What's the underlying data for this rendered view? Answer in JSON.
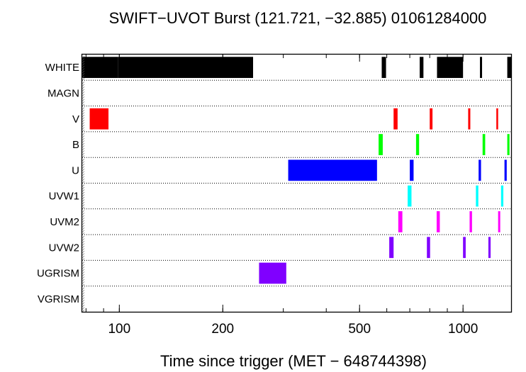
{
  "chart_data": {
    "type": "timeline",
    "title": "SWIFT−UVOT Burst (121.721, −32.885) 01061284000",
    "xlabel": "Time since trigger (MET − 648744398)",
    "ylabel": "",
    "x_scale": "log",
    "xlim": [
      78,
      1380
    ],
    "x_ticks": [
      100,
      200,
      500,
      1000
    ],
    "x_tick_labels": [
      "100",
      "200",
      "500",
      "1000"
    ],
    "grid": "dotted horizontal row separators",
    "rows": [
      "WHITE",
      "MAGN",
      "V",
      "B",
      "U",
      "UVW1",
      "UVM2",
      "UVW2",
      "UGRISM",
      "VGRISM"
    ],
    "colors": {
      "WHITE": "#000000",
      "MAGN": "#000000",
      "V": "#ff0000",
      "B": "#00ff00",
      "U": "#0000ff",
      "UVW1": "#00ffff",
      "UVM2": "#ff00ff",
      "UVW2": "#8000ff",
      "UGRISM": "#8000ff",
      "VGRISM": "#8000ff"
    },
    "exposures": {
      "WHITE": [
        [
          78,
          99
        ],
        [
          99,
          245
        ],
        [
          580,
          597
        ],
        [
          748,
          767
        ],
        [
          840,
          1000
        ],
        [
          1120,
          1136
        ],
        [
          1345,
          1380
        ]
      ],
      "MAGN": [],
      "V": [
        [
          82,
          93
        ],
        [
          628,
          645
        ],
        [
          800,
          815
        ],
        [
          1035,
          1050
        ],
        [
          1250,
          1265
        ]
      ],
      "B": [
        [
          568,
          584
        ],
        [
          730,
          745
        ],
        [
          1140,
          1160
        ],
        [
          1345,
          1365
        ]
      ],
      "U": [
        [
          310,
          562
        ],
        [
          700,
          718
        ],
        [
          1110,
          1128
        ],
        [
          1320,
          1340
        ]
      ],
      "UVW1": [
        [
          690,
          708
        ],
        [
          1090,
          1108
        ],
        [
          1290,
          1310
        ]
      ],
      "UVM2": [
        [
          648,
          666
        ],
        [
          838,
          856
        ],
        [
          1045,
          1062
        ],
        [
          1265,
          1283
        ]
      ],
      "UVW2": [
        [
          610,
          628
        ],
        [
          785,
          802
        ],
        [
          1000,
          1018
        ],
        [
          1185,
          1203
        ]
      ],
      "UGRISM": [
        [
          255,
          306
        ]
      ],
      "VGRISM": []
    }
  }
}
